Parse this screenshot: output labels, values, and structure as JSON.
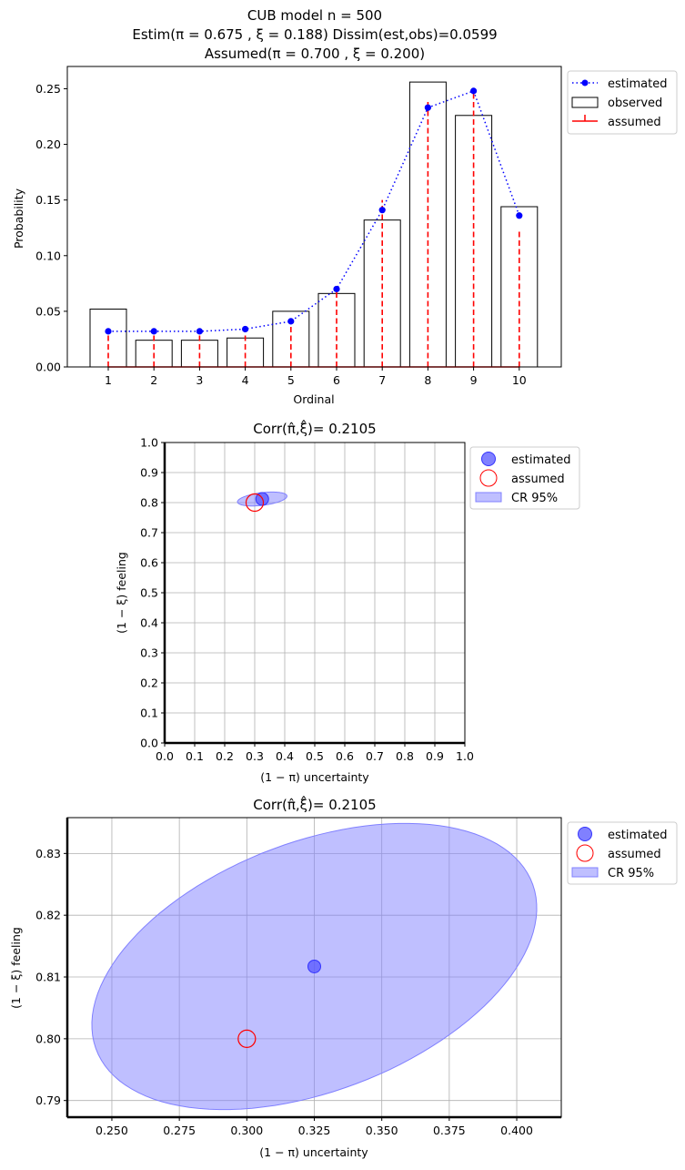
{
  "chart_data": [
    {
      "type": "bar",
      "title_lines": [
        "CUB model    n = 500",
        "Estim(π = 0.675 , ξ = 0.188)    Dissim(est,obs)=0.0599",
        "Assumed(π = 0.700 , ξ = 0.200)"
      ],
      "xlabel": "Ordinal",
      "ylabel": "Probability",
      "categories": [
        "1",
        "2",
        "3",
        "4",
        "5",
        "6",
        "7",
        "8",
        "9",
        "10"
      ],
      "ylim": [
        0,
        0.27
      ],
      "yticks": [
        "0.00",
        "0.05",
        "0.10",
        "0.15",
        "0.20",
        "0.25"
      ],
      "grid": false,
      "legend_position": "outside-top-right",
      "series": [
        {
          "name": "estimated",
          "kind": "line-dotted-markers",
          "color": "#0000ff",
          "values": [
            0.032,
            0.032,
            0.032,
            0.034,
            0.041,
            0.07,
            0.141,
            0.233,
            0.248,
            0.136
          ]
        },
        {
          "name": "observed",
          "kind": "bar-outline",
          "color": "#000000",
          "values": [
            0.052,
            0.024,
            0.024,
            0.026,
            0.05,
            0.066,
            0.132,
            0.256,
            0.226,
            0.144
          ]
        },
        {
          "name": "assumed",
          "kind": "stem-dashed",
          "color": "#ff0000",
          "values": [
            0.03,
            0.031,
            0.032,
            0.033,
            0.04,
            0.07,
            0.15,
            0.24,
            0.247,
            0.123
          ]
        }
      ]
    },
    {
      "type": "scatter",
      "title": "Corr(π̂,ξ̂)= 0.2105",
      "xlabel": "(1 − π)  uncertainty",
      "ylabel": "(1 − ξ)  feeling",
      "xlim": [
        0,
        1
      ],
      "ylim": [
        0,
        1
      ],
      "xticks": [
        "0.0",
        "0.1",
        "0.2",
        "0.3",
        "0.4",
        "0.5",
        "0.6",
        "0.7",
        "0.8",
        "0.9",
        "1.0"
      ],
      "yticks": [
        "0.0",
        "0.1",
        "0.2",
        "0.3",
        "0.4",
        "0.5",
        "0.6",
        "0.7",
        "0.8",
        "0.9",
        "1.0"
      ],
      "grid": true,
      "legend_position": "outside-top-right",
      "legend": [
        "estimated",
        "assumed",
        "CR 95%"
      ],
      "estimated": {
        "x": 0.325,
        "y": 0.812
      },
      "assumed": {
        "x": 0.3,
        "y": 0.8
      },
      "cr95": {
        "cx": 0.325,
        "cy": 0.812,
        "rx": 0.083,
        "ry": 0.021,
        "angle_deg": 7
      },
      "colors": {
        "estimated": "#5555ff",
        "assumed": "#ff0000",
        "cr": "#8080ff"
      }
    },
    {
      "type": "scatter",
      "title": "Corr(π̂,ξ̂)= 0.2105",
      "xlabel": "(1 − π)  uncertainty",
      "ylabel": "(1 − ξ)  feeling",
      "xlim": [
        0.2335,
        0.4165
      ],
      "ylim": [
        0.7873,
        0.8358
      ],
      "xticks": [
        "0.250",
        "0.275",
        "0.300",
        "0.325",
        "0.350",
        "0.375",
        "0.400"
      ],
      "yticks": [
        "0.79",
        "0.80",
        "0.81",
        "0.82",
        "0.83"
      ],
      "grid": true,
      "legend_position": "outside-top-right",
      "legend": [
        "estimated",
        "assumed",
        "CR 95%"
      ],
      "estimated": {
        "x": 0.325,
        "y": 0.8117
      },
      "assumed": {
        "x": 0.3,
        "y": 0.8
      },
      "cr95": {
        "cx": 0.325,
        "cy": 0.8117,
        "rx": 0.083,
        "ry": 0.021,
        "angle_deg": 7
      },
      "colors": {
        "estimated": "#5555ff",
        "assumed": "#ff0000",
        "cr": "#8080ff"
      }
    }
  ]
}
